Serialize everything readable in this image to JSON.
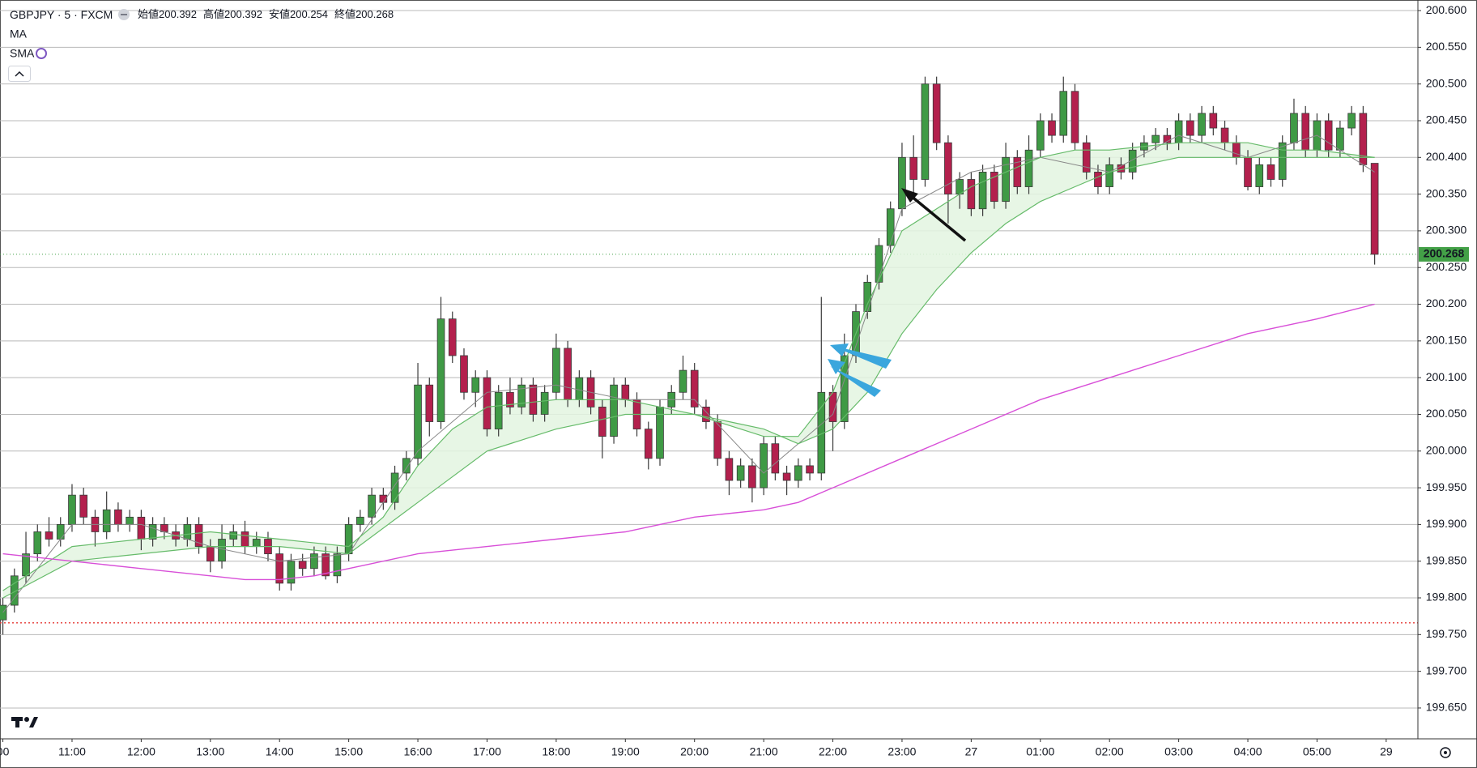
{
  "chart_data": {
    "type": "candlestick",
    "header": {
      "symbol": "GBPJPY · 5 · FXCM",
      "ohlc": [
        {
          "label": "始値",
          "value": 200.392
        },
        {
          "label": "高値",
          "value": 200.392
        },
        {
          "label": "安値",
          "value": 200.254
        },
        {
          "label": "終値",
          "value": 200.268
        }
      ],
      "indicators": [
        "MA",
        "SMA"
      ]
    },
    "up_color": "#3f9a45",
    "down_color": "#b3204d",
    "wick_color": "#3a3a3a",
    "grid": true,
    "xlim": [
      -0.25,
      122.75
    ],
    "ylim": [
      199.608,
      200.61
    ],
    "yticks": [
      {
        "value": 199.65,
        "label": "199.650"
      },
      {
        "value": 199.7,
        "label": "199.700"
      },
      {
        "value": 199.75,
        "label": "199.750"
      },
      {
        "value": 199.8,
        "label": "199.800"
      },
      {
        "value": 199.85,
        "label": "199.850"
      },
      {
        "value": 199.9,
        "label": "199.900"
      },
      {
        "value": 199.95,
        "label": "199.950"
      },
      {
        "value": 200.0,
        "label": "200.000"
      },
      {
        "value": 200.05,
        "label": "200.050"
      },
      {
        "value": 200.1,
        "label": "200.100"
      },
      {
        "value": 200.15,
        "label": "200.150"
      },
      {
        "value": 200.2,
        "label": "200.200"
      },
      {
        "value": 200.25,
        "label": "200.250"
      },
      {
        "value": 200.3,
        "label": "200.300"
      },
      {
        "value": 200.35,
        "label": "200.350"
      },
      {
        "value": 200.4,
        "label": "200.400"
      },
      {
        "value": 200.45,
        "label": "200.450"
      },
      {
        "value": 200.5,
        "label": "200.500"
      },
      {
        "value": 200.55,
        "label": "200.550"
      },
      {
        "value": 200.6,
        "label": "200.600"
      }
    ],
    "xticks": [
      {
        "value": 0,
        "label": "00"
      },
      {
        "value": 6,
        "label": "11:00"
      },
      {
        "value": 12,
        "label": "12:00"
      },
      {
        "value": 18,
        "label": "13:00"
      },
      {
        "value": 24,
        "label": "14:00"
      },
      {
        "value": 30,
        "label": "15:00"
      },
      {
        "value": 36,
        "label": "16:00"
      },
      {
        "value": 42,
        "label": "17:00"
      },
      {
        "value": 48,
        "label": "18:00"
      },
      {
        "value": 54,
        "label": "19:00"
      },
      {
        "value": 60,
        "label": "20:00"
      },
      {
        "value": 66,
        "label": "21:00"
      },
      {
        "value": 72,
        "label": "22:00"
      },
      {
        "value": 78,
        "label": "23:00"
      },
      {
        "value": 84,
        "label": "27"
      },
      {
        "value": 90,
        "label": "01:00"
      },
      {
        "value": 96,
        "label": "02:00"
      },
      {
        "value": 102,
        "label": "03:00"
      },
      {
        "value": 108,
        "label": "04:00"
      },
      {
        "value": 114,
        "label": "05:00"
      },
      {
        "value": 120,
        "label": "29"
      }
    ],
    "candles": [
      [
        199.77,
        199.8,
        199.75,
        199.79
      ],
      [
        199.79,
        199.84,
        199.78,
        199.83
      ],
      [
        199.83,
        199.89,
        199.82,
        199.86
      ],
      [
        199.86,
        199.9,
        199.85,
        199.89
      ],
      [
        199.89,
        199.91,
        199.87,
        199.88
      ],
      [
        199.88,
        199.91,
        199.87,
        199.9
      ],
      [
        199.9,
        199.955,
        199.89,
        199.94
      ],
      [
        199.94,
        199.95,
        199.9,
        199.91
      ],
      [
        199.91,
        199.92,
        199.87,
        199.89
      ],
      [
        199.89,
        199.945,
        199.88,
        199.92
      ],
      [
        199.92,
        199.93,
        199.89,
        199.9
      ],
      [
        199.9,
        199.92,
        199.89,
        199.91
      ],
      [
        199.91,
        199.92,
        199.865,
        199.88
      ],
      [
        199.88,
        199.91,
        199.87,
        199.9
      ],
      [
        199.9,
        199.91,
        199.88,
        199.89
      ],
      [
        199.89,
        199.9,
        199.87,
        199.88
      ],
      [
        199.88,
        199.91,
        199.87,
        199.9
      ],
      [
        199.9,
        199.91,
        199.86,
        199.87
      ],
      [
        199.87,
        199.88,
        199.835,
        199.85
      ],
      [
        199.85,
        199.9,
        199.84,
        199.88
      ],
      [
        199.88,
        199.9,
        199.87,
        199.89
      ],
      [
        199.89,
        199.905,
        199.86,
        199.87
      ],
      [
        199.87,
        199.89,
        199.86,
        199.88
      ],
      [
        199.88,
        199.89,
        199.85,
        199.86
      ],
      [
        199.86,
        199.87,
        199.81,
        199.82
      ],
      [
        199.82,
        199.86,
        199.81,
        199.85
      ],
      [
        199.85,
        199.86,
        199.83,
        199.84
      ],
      [
        199.84,
        199.87,
        199.83,
        199.86
      ],
      [
        199.86,
        199.87,
        199.825,
        199.83
      ],
      [
        199.83,
        199.87,
        199.82,
        199.86
      ],
      [
        199.86,
        199.91,
        199.85,
        199.9
      ],
      [
        199.9,
        199.92,
        199.89,
        199.91
      ],
      [
        199.91,
        199.95,
        199.9,
        199.94
      ],
      [
        199.94,
        199.95,
        199.92,
        199.93
      ],
      [
        199.93,
        199.98,
        199.92,
        199.97
      ],
      [
        199.97,
        200.0,
        199.96,
        199.99
      ],
      [
        199.99,
        200.12,
        199.98,
        200.09
      ],
      [
        200.09,
        200.1,
        200.02,
        200.04
      ],
      [
        200.04,
        200.21,
        200.03,
        200.18
      ],
      [
        200.18,
        200.19,
        200.12,
        200.13
      ],
      [
        200.13,
        200.14,
        200.07,
        200.08
      ],
      [
        200.08,
        200.11,
        200.06,
        200.1
      ],
      [
        200.1,
        200.11,
        200.02,
        200.03
      ],
      [
        200.03,
        200.09,
        200.02,
        200.08
      ],
      [
        200.08,
        200.1,
        200.05,
        200.06
      ],
      [
        200.06,
        200.1,
        200.05,
        200.09
      ],
      [
        200.09,
        200.1,
        200.04,
        200.05
      ],
      [
        200.05,
        200.09,
        200.04,
        200.08
      ],
      [
        200.08,
        200.16,
        200.07,
        200.14
      ],
      [
        200.14,
        200.15,
        200.06,
        200.07
      ],
      [
        200.07,
        200.11,
        200.06,
        200.1
      ],
      [
        200.1,
        200.11,
        200.05,
        200.06
      ],
      [
        200.06,
        200.07,
        199.99,
        200.02
      ],
      [
        200.02,
        200.1,
        200.01,
        200.09
      ],
      [
        200.09,
        200.1,
        200.06,
        200.07
      ],
      [
        200.07,
        200.08,
        200.02,
        200.03
      ],
      [
        200.03,
        200.04,
        199.975,
        199.99
      ],
      [
        199.99,
        200.07,
        199.98,
        200.06
      ],
      [
        200.06,
        200.09,
        200.05,
        200.08
      ],
      [
        200.08,
        200.13,
        200.07,
        200.11
      ],
      [
        200.11,
        200.12,
        200.05,
        200.06
      ],
      [
        200.06,
        200.07,
        200.03,
        200.04
      ],
      [
        200.04,
        200.05,
        199.98,
        199.99
      ],
      [
        199.99,
        200.0,
        199.94,
        199.96
      ],
      [
        199.96,
        199.99,
        199.95,
        199.98
      ],
      [
        199.98,
        199.99,
        199.93,
        199.95
      ],
      [
        199.95,
        200.02,
        199.94,
        200.01
      ],
      [
        200.01,
        200.02,
        199.96,
        199.97
      ],
      [
        199.97,
        199.98,
        199.94,
        199.96
      ],
      [
        199.96,
        199.99,
        199.95,
        199.98
      ],
      [
        199.98,
        199.99,
        199.96,
        199.97
      ],
      [
        199.97,
        200.21,
        199.96,
        200.08
      ],
      [
        200.08,
        200.09,
        200.0,
        200.04
      ],
      [
        200.04,
        200.16,
        200.03,
        200.13
      ],
      [
        200.13,
        200.2,
        200.12,
        200.19
      ],
      [
        200.19,
        200.24,
        200.18,
        200.23
      ],
      [
        200.23,
        200.29,
        200.22,
        200.28
      ],
      [
        200.28,
        200.34,
        200.27,
        200.33
      ],
      [
        200.33,
        200.42,
        200.32,
        200.4
      ],
      [
        200.4,
        200.43,
        200.35,
        200.37
      ],
      [
        200.37,
        200.51,
        200.36,
        200.5
      ],
      [
        200.5,
        200.51,
        200.41,
        200.42
      ],
      [
        200.42,
        200.43,
        200.31,
        200.35
      ],
      [
        200.35,
        200.38,
        200.33,
        200.37
      ],
      [
        200.37,
        200.38,
        200.32,
        200.33
      ],
      [
        200.33,
        200.39,
        200.32,
        200.38
      ],
      [
        200.38,
        200.39,
        200.33,
        200.34
      ],
      [
        200.34,
        200.42,
        200.33,
        200.4
      ],
      [
        200.4,
        200.41,
        200.35,
        200.36
      ],
      [
        200.36,
        200.43,
        200.35,
        200.41
      ],
      [
        200.41,
        200.46,
        200.4,
        200.45
      ],
      [
        200.45,
        200.46,
        200.42,
        200.43
      ],
      [
        200.43,
        200.51,
        200.42,
        200.49
      ],
      [
        200.49,
        200.5,
        200.41,
        200.42
      ],
      [
        200.42,
        200.43,
        200.37,
        200.38
      ],
      [
        200.38,
        200.39,
        200.35,
        200.36
      ],
      [
        200.36,
        200.4,
        200.35,
        200.39
      ],
      [
        200.39,
        200.4,
        200.37,
        200.38
      ],
      [
        200.38,
        200.42,
        200.37,
        200.41
      ],
      [
        200.41,
        200.43,
        200.4,
        200.42
      ],
      [
        200.42,
        200.44,
        200.41,
        200.43
      ],
      [
        200.43,
        200.44,
        200.41,
        200.42
      ],
      [
        200.42,
        200.46,
        200.41,
        200.45
      ],
      [
        200.45,
        200.46,
        200.42,
        200.43
      ],
      [
        200.43,
        200.47,
        200.42,
        200.46
      ],
      [
        200.46,
        200.47,
        200.43,
        200.44
      ],
      [
        200.44,
        200.45,
        200.41,
        200.42
      ],
      [
        200.42,
        200.43,
        200.39,
        200.4
      ],
      [
        200.4,
        200.41,
        200.355,
        200.36
      ],
      [
        200.36,
        200.4,
        200.35,
        200.39
      ],
      [
        200.39,
        200.4,
        200.36,
        200.37
      ],
      [
        200.37,
        200.43,
        200.36,
        200.42
      ],
      [
        200.42,
        200.48,
        200.41,
        200.46
      ],
      [
        200.46,
        200.47,
        200.4,
        200.41
      ],
      [
        200.41,
        200.46,
        200.4,
        200.45
      ],
      [
        200.45,
        200.46,
        200.4,
        200.41
      ],
      [
        200.41,
        200.45,
        200.4,
        200.44
      ],
      [
        200.44,
        200.47,
        200.43,
        200.46
      ],
      [
        200.46,
        200.47,
        200.38,
        200.39
      ],
      [
        200.392,
        200.392,
        200.254,
        200.268
      ]
    ],
    "lines": [
      {
        "color": "#888888",
        "width": 1,
        "x": [
          0,
          6,
          12,
          18,
          24,
          30,
          36,
          42,
          48,
          54,
          60,
          66,
          72,
          78,
          84,
          90,
          96,
          102,
          108,
          114,
          119
        ],
        "values": [
          199.78,
          199.9,
          199.9,
          199.87,
          199.85,
          199.86,
          200.0,
          200.08,
          200.09,
          200.07,
          200.07,
          199.97,
          200.05,
          200.33,
          200.38,
          200.4,
          200.38,
          200.43,
          200.4,
          200.43,
          200.38
        ]
      },
      {
        "color": "#66bb6a",
        "width": 1.2,
        "x": [
          0,
          6,
          12,
          18,
          24,
          30,
          33,
          36,
          39,
          42,
          48,
          54,
          60,
          64,
          66,
          69,
          72,
          75,
          78,
          81,
          84,
          87,
          90,
          93,
          96,
          102,
          108,
          111,
          114,
          119
        ],
        "values": [
          199.81,
          199.87,
          199.88,
          199.89,
          199.88,
          199.87,
          199.91,
          199.98,
          200.03,
          200.06,
          200.07,
          200.07,
          200.05,
          200.03,
          200.02,
          200.02,
          200.08,
          200.2,
          200.3,
          200.33,
          200.36,
          200.38,
          200.4,
          200.41,
          200.41,
          200.42,
          200.42,
          200.41,
          200.41,
          200.4
        ]
      },
      {
        "color": "#66bb6a",
        "width": 1.2,
        "x": [
          0,
          6,
          12,
          18,
          24,
          30,
          36,
          42,
          48,
          54,
          60,
          63,
          66,
          69,
          72,
          75,
          78,
          81,
          84,
          87,
          90,
          93,
          96,
          102,
          108,
          114,
          119
        ],
        "values": [
          199.8,
          199.85,
          199.86,
          199.87,
          199.87,
          199.86,
          199.93,
          200.0,
          200.03,
          200.05,
          200.05,
          200.04,
          200.03,
          200.01,
          200.03,
          200.08,
          200.16,
          200.22,
          200.27,
          200.31,
          200.34,
          200.36,
          200.38,
          200.4,
          200.4,
          200.4,
          200.4
        ]
      },
      {
        "color": "#d84fd8",
        "width": 1.4,
        "x": [
          0,
          6,
          12,
          18,
          21,
          24,
          27,
          30,
          36,
          42,
          48,
          54,
          60,
          66,
          69,
          72,
          78,
          84,
          90,
          96,
          102,
          108,
          114,
          119
        ],
        "values": [
          199.86,
          199.85,
          199.84,
          199.83,
          199.825,
          199.825,
          199.83,
          199.84,
          199.86,
          199.87,
          199.88,
          199.89,
          199.91,
          199.92,
          199.93,
          199.95,
          199.99,
          200.03,
          200.07,
          200.1,
          200.13,
          200.16,
          200.18,
          200.2
        ]
      }
    ],
    "ref_line": {
      "value": 199.766,
      "color": "#e53935"
    },
    "last_price": {
      "value": 200.268,
      "color": "#43a047"
    }
  }
}
